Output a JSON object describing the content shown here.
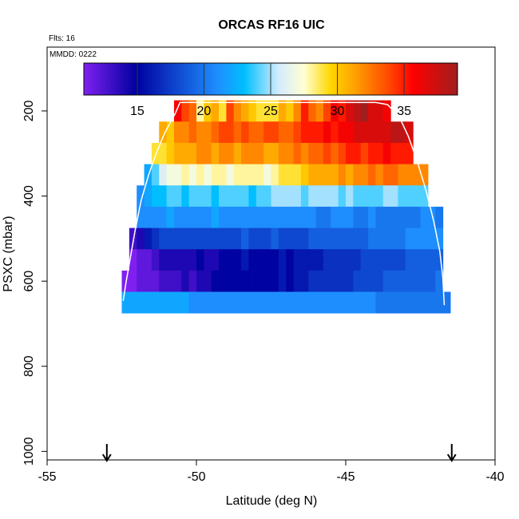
{
  "chart_data": {
    "type": "heatmap",
    "title": "ORCAS RF16 UIC",
    "flights_label": "Flts: 16",
    "date_label": "MMDD: 0222",
    "xlabel": "Latitude (deg N)",
    "ylabel": "PSXC (mbar)",
    "xlim": [
      -55,
      -40
    ],
    "ylim": [
      1020,
      50
    ],
    "xticks": [
      -55,
      -50,
      -45,
      -40
    ],
    "xtick_labels": [
      "-55",
      "-50",
      "-45",
      "-40"
    ],
    "yticks": [
      200,
      400,
      600,
      800,
      1000
    ],
    "ytick_labels": [
      "200",
      "400",
      "600",
      "800",
      "1000"
    ],
    "colorbar": {
      "range": [
        11,
        39
      ],
      "ticks": [
        15,
        20,
        25,
        30,
        35
      ],
      "tick_labels": [
        "15",
        "20",
        "25",
        "30",
        "35"
      ]
    },
    "lat_bin_width": 0.25,
    "pressure_bin_height": 50,
    "rows": [
      {
        "p_center": 200,
        "lat_start": -50.75,
        "lat_end": -43.5,
        "values": [
          36,
          34,
          33,
          28,
          30,
          31,
          29,
          34,
          32,
          31,
          30,
          29,
          29,
          29,
          31,
          30,
          32,
          35,
          33,
          32,
          34,
          36,
          35,
          37,
          38,
          39,
          37,
          37,
          36
        ]
      },
      {
        "p_center": 250,
        "lat_start": -51.25,
        "lat_end": -42.75,
        "values": [
          31,
          30,
          32,
          32,
          33,
          32,
          32,
          33,
          34,
          34,
          33,
          34,
          33,
          33,
          34,
          34,
          33,
          33,
          34,
          35,
          35,
          35,
          36,
          35,
          36,
          36,
          37,
          37,
          37,
          37,
          37,
          38,
          38,
          37
        ]
      },
      {
        "p_center": 300,
        "lat_start": -51.5,
        "lat_end": -42.75,
        "values": [
          29,
          29,
          30,
          31,
          31,
          31,
          32,
          32,
          31,
          32,
          32,
          31,
          32,
          32,
          32,
          31,
          31,
          32,
          32,
          33,
          32,
          33,
          33,
          34,
          33,
          34,
          35,
          35,
          34,
          35,
          35,
          36,
          35,
          35,
          35
        ]
      },
      {
        "p_center": 350,
        "lat_start": -51.75,
        "lat_end": -42.25,
        "values": [
          22,
          24,
          26,
          27,
          27,
          28,
          27,
          28,
          27,
          28,
          28,
          27,
          28,
          28,
          28,
          28,
          27,
          28,
          29,
          29,
          29,
          30,
          31,
          31,
          31,
          31,
          32,
          31,
          32,
          32,
          33,
          32,
          33,
          33,
          32,
          32,
          32,
          32
        ]
      },
      {
        "p_center": 400,
        "lat_start": -52.0,
        "lat_end": -42.25,
        "values": [
          21,
          22,
          23,
          23,
          24,
          24,
          23,
          24,
          24,
          24,
          23,
          24,
          24,
          24,
          24,
          23,
          24,
          24,
          25,
          25,
          25,
          25,
          24,
          25,
          25,
          25,
          25,
          24,
          25,
          24,
          24,
          24,
          24,
          25,
          25,
          24,
          24,
          24,
          24
        ]
      },
      {
        "p_center": 450,
        "lat_start": -52.0,
        "lat_end": -41.75,
        "values": [
          21,
          21,
          21,
          21,
          22,
          21,
          21,
          21,
          21,
          21,
          22,
          21,
          21,
          21,
          21,
          21,
          21,
          21,
          21,
          21,
          21,
          21,
          21,
          21,
          20,
          20,
          21,
          21,
          21,
          20,
          20,
          21,
          20,
          20,
          20,
          20,
          20,
          20,
          21,
          21,
          20
        ]
      },
      {
        "p_center": 500,
        "lat_start": -52.25,
        "lat_end": -41.75,
        "values": [
          13,
          14,
          16,
          17,
          18,
          18,
          18,
          18,
          18,
          18,
          18,
          18,
          18,
          18,
          18,
          19,
          18,
          18,
          18,
          19,
          18,
          18,
          18,
          18,
          19,
          19,
          19,
          19,
          19,
          19,
          19,
          19,
          20,
          20,
          20,
          20,
          20,
          21,
          21,
          21,
          21,
          21
        ]
      },
      {
        "p_center": 550,
        "lat_start": -52.25,
        "lat_end": -41.75,
        "values": [
          11,
          12,
          12,
          13,
          14,
          14,
          14,
          14,
          14,
          15,
          14,
          14,
          15,
          15,
          15,
          16,
          15,
          15,
          15,
          15,
          16,
          15,
          16,
          16,
          16,
          16,
          17,
          17,
          17,
          17,
          17,
          18,
          18,
          18,
          18,
          18,
          18,
          19,
          19,
          19,
          19,
          19
        ]
      },
      {
        "p_center": 600,
        "lat_start": -52.5,
        "lat_end": -41.75,
        "values": [
          11,
          11,
          12,
          12,
          12,
          13,
          13,
          13,
          14,
          13,
          14,
          14,
          15,
          15,
          15,
          15,
          15,
          15,
          15,
          15,
          15,
          16,
          15,
          16,
          16,
          17,
          17,
          17,
          17,
          17,
          17,
          18,
          18,
          18,
          18,
          19,
          19,
          19,
          19,
          19,
          19,
          19,
          20
        ]
      },
      {
        "p_center": 650,
        "lat_start": -52.5,
        "lat_end": -41.5,
        "values": [
          22,
          22,
          22,
          22,
          22,
          22,
          22,
          22,
          22,
          21,
          21,
          21,
          21,
          21,
          21,
          21,
          21,
          21,
          21,
          21,
          21,
          21,
          21,
          21,
          21,
          21,
          21,
          21,
          21,
          21,
          21,
          21,
          21,
          21,
          20,
          20,
          20,
          20,
          20,
          20,
          20,
          20,
          20,
          20
        ]
      }
    ],
    "flight_track_points": [
      [
        -52.45,
        645
      ],
      [
        -52.35,
        600
      ],
      [
        -52.2,
        540
      ],
      [
        -52.05,
        480
      ],
      [
        -51.85,
        410
      ],
      [
        -51.6,
        350
      ],
      [
        -51.35,
        300
      ],
      [
        -51.05,
        250
      ],
      [
        -50.7,
        205
      ],
      [
        -50.55,
        180
      ],
      [
        -49.5,
        180
      ],
      [
        -48.0,
        180
      ],
      [
        -46.5,
        180
      ],
      [
        -45.0,
        180
      ],
      [
        -44.0,
        180
      ],
      [
        -43.6,
        185
      ],
      [
        -43.2,
        215
      ],
      [
        -42.9,
        260
      ],
      [
        -42.6,
        320
      ],
      [
        -42.3,
        390
      ],
      [
        -42.05,
        460
      ],
      [
        -41.85,
        530
      ],
      [
        -41.75,
        590
      ],
      [
        -41.7,
        655
      ]
    ],
    "markers": [
      {
        "label": "down-arrow",
        "lat": -53.0
      },
      {
        "label": "down-arrow",
        "lat": -41.45
      }
    ]
  }
}
